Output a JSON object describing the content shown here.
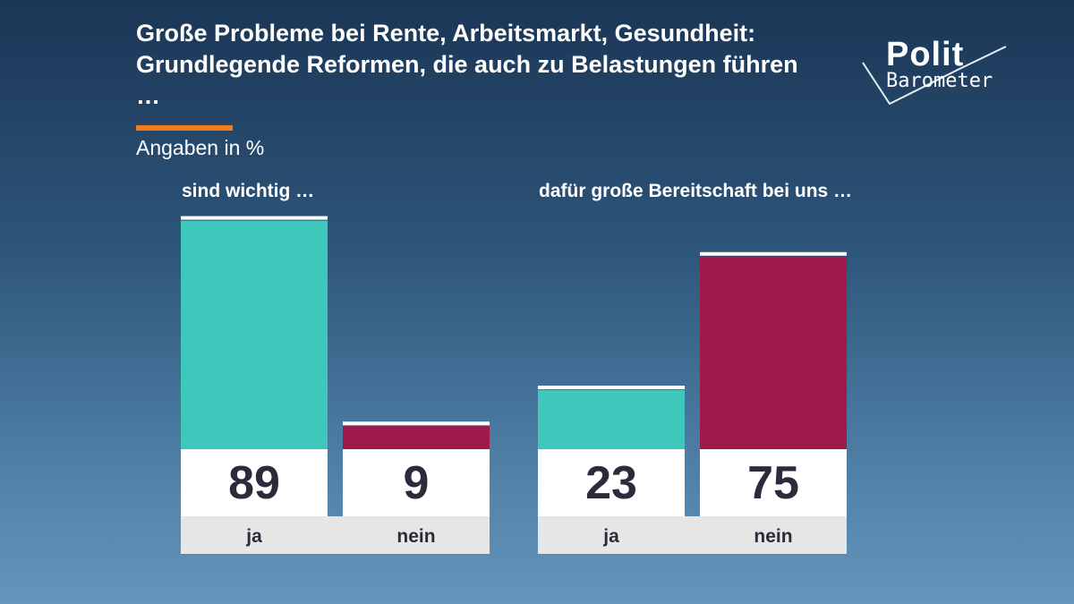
{
  "header": {
    "title": "Große Probleme bei Rente, Arbeitsmarkt, Gesundheit: Grundlegende Reformen, die auch zu Belastungen führen …",
    "subtitle": "Angaben in %"
  },
  "logo": {
    "line1": "Polit",
    "line2": "Barometer"
  },
  "colors": {
    "ja": "#3ec7ba",
    "nein": "#9e1a4a",
    "accent": "#f07d1a",
    "value_box": "#ffffff",
    "label_box": "#e6e6e6"
  },
  "chart_data": {
    "type": "bar",
    "unit": "%",
    "ylim": [
      0,
      100
    ],
    "groups": [
      {
        "label": "sind wichtig …",
        "bars": [
          {
            "category": "ja",
            "value": 89
          },
          {
            "category": "nein",
            "value": 9
          }
        ]
      },
      {
        "label": "dafür große Bereitschaft bei uns …",
        "bars": [
          {
            "category": "ja",
            "value": 23
          },
          {
            "category": "nein",
            "value": 75
          }
        ]
      }
    ]
  }
}
